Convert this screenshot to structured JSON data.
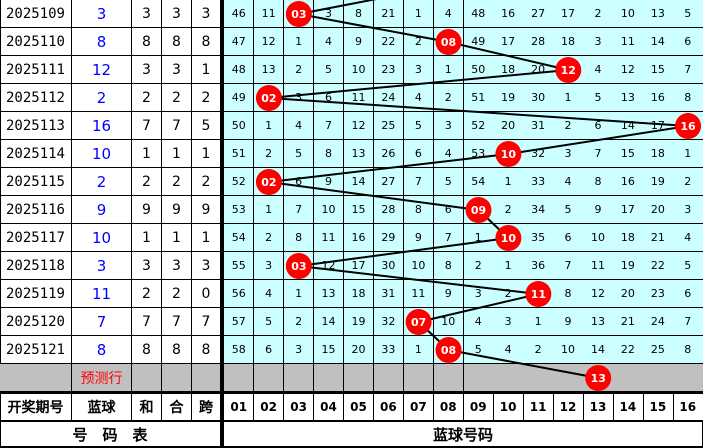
{
  "ball_color": "#ff0000",
  "cell_bg": "#ccffff",
  "rows": [
    {
      "period": "2025109",
      "blue": "3",
      "he": "3",
      "hé": "3",
      "kua": "3",
      "cells": [
        "46",
        "11",
        "03",
        "3",
        "8",
        "21",
        "1",
        "4",
        "48",
        "16",
        "27",
        "17",
        "2",
        "10",
        "13",
        "5"
      ]
    },
    {
      "period": "2025110",
      "blue": "8",
      "he": "8",
      "hé": "8",
      "kua": "8",
      "cells": [
        "47",
        "12",
        "1",
        "4",
        "9",
        "22",
        "2",
        "08",
        "49",
        "17",
        "28",
        "18",
        "3",
        "11",
        "14",
        "6"
      ]
    },
    {
      "period": "2025111",
      "blue": "12",
      "he": "3",
      "hé": "3",
      "kua": "1",
      "cells": [
        "48",
        "13",
        "2",
        "5",
        "10",
        "23",
        "3",
        "1",
        "50",
        "18",
        "20",
        "12",
        "4",
        "12",
        "15",
        "7"
      ]
    },
    {
      "period": "2025112",
      "blue": "2",
      "he": "2",
      "hé": "2",
      "kua": "2",
      "cells": [
        "49",
        "02",
        "3",
        "6",
        "11",
        "24",
        "4",
        "2",
        "51",
        "19",
        "30",
        "1",
        "5",
        "13",
        "16",
        "8"
      ]
    },
    {
      "period": "2025113",
      "blue": "16",
      "he": "7",
      "hé": "7",
      "kua": "5",
      "cells": [
        "50",
        "1",
        "4",
        "7",
        "12",
        "25",
        "5",
        "3",
        "52",
        "20",
        "31",
        "2",
        "6",
        "14",
        "17",
        "16"
      ]
    },
    {
      "period": "2025114",
      "blue": "10",
      "he": "1",
      "hé": "1",
      "kua": "1",
      "cells": [
        "51",
        "2",
        "5",
        "8",
        "13",
        "26",
        "6",
        "4",
        "53",
        "10",
        "32",
        "3",
        "7",
        "15",
        "18",
        "1"
      ]
    },
    {
      "period": "2025115",
      "blue": "2",
      "he": "2",
      "hé": "2",
      "kua": "2",
      "cells": [
        "52",
        "02",
        "6",
        "9",
        "14",
        "27",
        "7",
        "5",
        "54",
        "1",
        "33",
        "4",
        "8",
        "16",
        "19",
        "2"
      ]
    },
    {
      "period": "2025116",
      "blue": "9",
      "he": "9",
      "hé": "9",
      "kua": "9",
      "cells": [
        "53",
        "1",
        "7",
        "10",
        "15",
        "28",
        "8",
        "6",
        "09",
        "2",
        "34",
        "5",
        "9",
        "17",
        "20",
        "3"
      ]
    },
    {
      "period": "2025117",
      "blue": "10",
      "he": "1",
      "hé": "1",
      "kua": "1",
      "cells": [
        "54",
        "2",
        "8",
        "11",
        "16",
        "29",
        "9",
        "7",
        "1",
        "10",
        "35",
        "6",
        "10",
        "18",
        "21",
        "4"
      ]
    },
    {
      "period": "2025118",
      "blue": "3",
      "he": "3",
      "hé": "3",
      "kua": "3",
      "cells": [
        "55",
        "3",
        "03",
        "12",
        "17",
        "30",
        "10",
        "8",
        "2",
        "1",
        "36",
        "7",
        "11",
        "19",
        "22",
        "5"
      ]
    },
    {
      "period": "2025119",
      "blue": "11",
      "he": "2",
      "hé": "2",
      "kua": "0",
      "cells": [
        "56",
        "4",
        "1",
        "13",
        "18",
        "31",
        "11",
        "9",
        "3",
        "2",
        "11",
        "8",
        "12",
        "20",
        "23",
        "6"
      ]
    },
    {
      "period": "2025120",
      "blue": "7",
      "he": "7",
      "hé": "7",
      "kua": "7",
      "cells": [
        "57",
        "5",
        "2",
        "14",
        "19",
        "32",
        "07",
        "10",
        "4",
        "3",
        "1",
        "9",
        "13",
        "21",
        "24",
        "7"
      ]
    },
    {
      "period": "2025121",
      "blue": "8",
      "he": "8",
      "hé": "8",
      "kua": "8",
      "cells": [
        "58",
        "6",
        "3",
        "15",
        "20",
        "33",
        "1",
        "08",
        "5",
        "4",
        "2",
        "10",
        "14",
        "22",
        "25",
        "8"
      ]
    }
  ],
  "prediction": {
    "label": "预测行",
    "ball": "13"
  },
  "header": {
    "period": "开奖期号",
    "blue": "蓝球",
    "he": "和",
    "hé": "合",
    "kua": "跨",
    "numbers": [
      "01",
      "02",
      "03",
      "04",
      "05",
      "06",
      "07",
      "08",
      "09",
      "10",
      "11",
      "12",
      "13",
      "14",
      "15",
      "16"
    ]
  },
  "footer": {
    "left": "号　码　表",
    "right": "蓝球号码"
  }
}
